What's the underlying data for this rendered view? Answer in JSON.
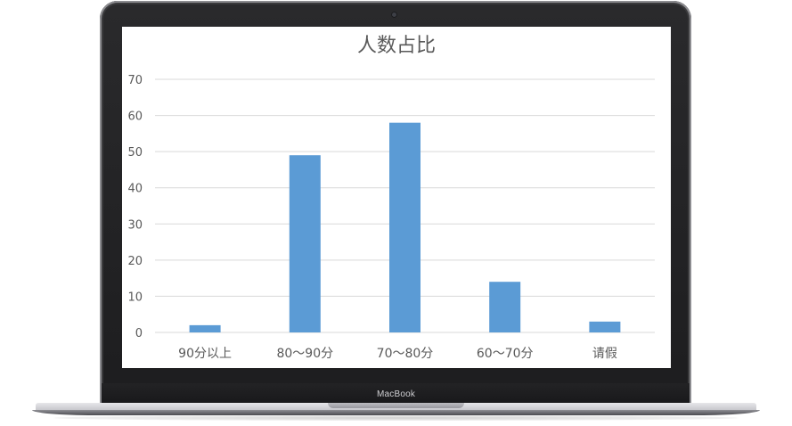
{
  "device": {
    "brand_label": "MacBook"
  },
  "chart_data": {
    "type": "bar",
    "title": "人数占比",
    "categories": [
      "90分以上",
      "80～90分",
      "70～80分",
      "60～70分",
      "请假"
    ],
    "values": [
      2,
      49,
      58,
      14,
      3
    ],
    "ylim": [
      0,
      70
    ],
    "yticks": [
      0,
      10,
      20,
      30,
      40,
      50,
      60,
      70
    ],
    "grid": true,
    "legend": "none",
    "bar_color": "#5b9bd5",
    "grid_color": "#d9d9d9",
    "text_color": "#595959"
  }
}
